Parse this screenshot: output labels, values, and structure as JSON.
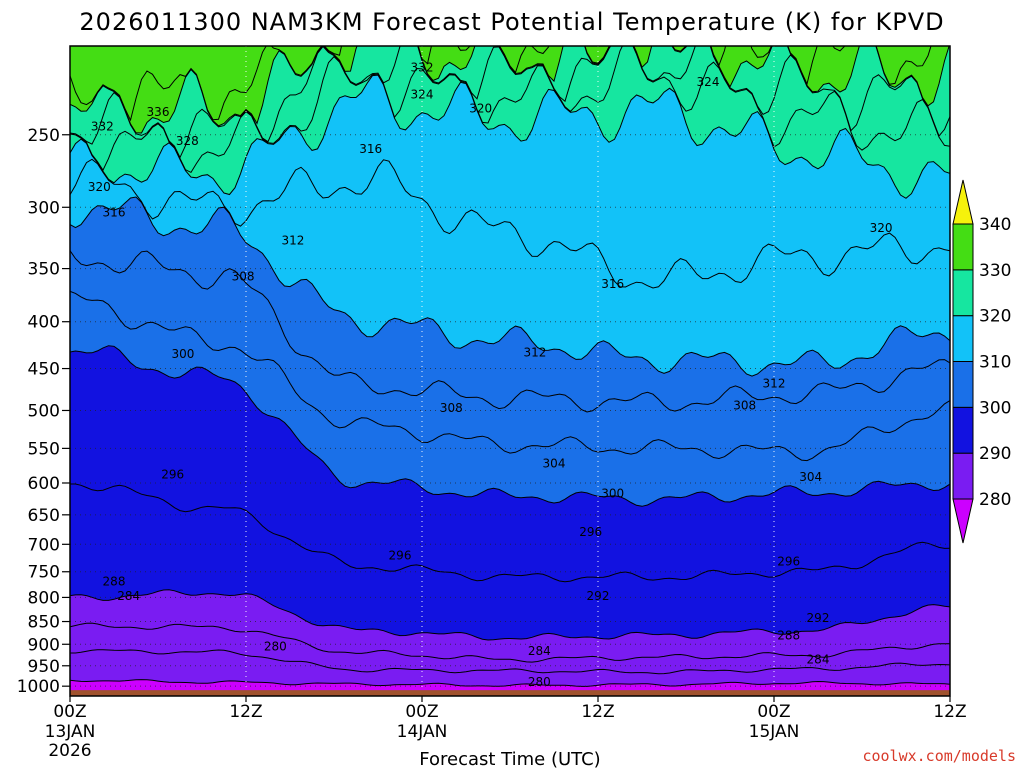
{
  "chart_data": {
    "type": "contour",
    "title": "2026011300 NAM3KM Forecast Potential Temperature (K) for KPVD",
    "xlabel": "Forecast Time (UTC)",
    "ylabel": "",
    "credit": "coolwx.com/models",
    "x_hours": [
      0,
      12,
      24,
      36,
      48,
      60
    ],
    "x_ticks": [
      {
        "hour": 0,
        "label": "00Z",
        "date": "13JAN",
        "year": "2026"
      },
      {
        "hour": 12,
        "label": "12Z",
        "date": "",
        "year": ""
      },
      {
        "hour": 24,
        "label": "00Z",
        "date": "14JAN",
        "year": ""
      },
      {
        "hour": 36,
        "label": "12Z",
        "date": "",
        "year": ""
      },
      {
        "hour": 48,
        "label": "00Z",
        "date": "15JAN",
        "year": ""
      },
      {
        "hour": 60,
        "label": "12Z",
        "date": "",
        "year": ""
      }
    ],
    "y_ticks_hpa": [
      250,
      300,
      350,
      400,
      450,
      500,
      550,
      600,
      650,
      700,
      750,
      800,
      850,
      900,
      950,
      1000
    ],
    "ylim_hpa": [
      1025,
      200
    ],
    "contour_interval_k": 2,
    "surface_hpa": 1010,
    "isentropes": [
      {
        "theta": 280,
        "pressure": [
          985,
          990,
          995,
          998,
          996,
          992,
          995
        ]
      },
      {
        "theta": 284,
        "pressure": [
          915,
          918,
          960,
          962,
          965,
          958,
          945
        ]
      },
      {
        "theta": 288,
        "pressure": [
          860,
          862,
          920,
          935,
          930,
          925,
          900
        ]
      },
      {
        "theta": 292,
        "pressure": [
          800,
          790,
          870,
          885,
          880,
          870,
          820
        ]
      },
      {
        "theta": 296,
        "pressure": [
          600,
          640,
          740,
          760,
          760,
          750,
          700
        ]
      },
      {
        "theta": 300,
        "pressure": [
          430,
          460,
          600,
          620,
          625,
          615,
          600
        ]
      },
      {
        "theta": 304,
        "pressure": [
          380,
          420,
          520,
          545,
          550,
          555,
          500
        ]
      },
      {
        "theta": 308,
        "pressure": [
          340,
          355,
          470,
          485,
          490,
          480,
          450
        ]
      },
      {
        "theta": 312,
        "pressure": [
          300,
          315,
          400,
          420,
          440,
          445,
          410
        ]
      },
      {
        "theta": 316,
        "pressure": [
          280,
          300,
          280,
          320,
          360,
          340,
          330
        ]
      },
      {
        "theta": 320,
        "pressure": [
          270,
          275,
          230,
          240,
          235,
          260,
          280
        ]
      },
      {
        "theta": 324,
        "pressure": [
          255,
          260,
          220,
          230,
          215,
          240,
          250
        ]
      },
      {
        "theta": 328,
        "pressure": [
          245,
          250,
          212,
          218,
          212,
          225,
          230
        ]
      },
      {
        "theta": 332,
        "pressure": [
          240,
          235,
          205,
          212,
          208,
          215,
          215
        ]
      },
      {
        "theta": 336,
        "pressure": [
          230,
          228,
          203,
          208,
          205,
          208,
          208
        ]
      }
    ],
    "contour_labels": [
      {
        "theta": "336",
        "hour": 6.0,
        "p": 236
      },
      {
        "theta": "332",
        "hour": 2.2,
        "p": 245
      },
      {
        "theta": "328",
        "hour": 8.0,
        "p": 254
      },
      {
        "theta": "332",
        "hour": 24.0,
        "p": 211
      },
      {
        "theta": "324",
        "hour": 24.0,
        "p": 226
      },
      {
        "theta": "320",
        "hour": 28.0,
        "p": 234
      },
      {
        "theta": "324",
        "hour": 43.5,
        "p": 219
      },
      {
        "theta": "316",
        "hour": 20.5,
        "p": 259
      },
      {
        "theta": "320",
        "hour": 2.0,
        "p": 285
      },
      {
        "theta": "316",
        "hour": 3.0,
        "p": 304
      },
      {
        "theta": "312",
        "hour": 15.2,
        "p": 326
      },
      {
        "theta": "320",
        "hour": 55.3,
        "p": 316
      },
      {
        "theta": "308",
        "hour": 11.8,
        "p": 357
      },
      {
        "theta": "316",
        "hour": 37.0,
        "p": 364
      },
      {
        "theta": "300",
        "hour": 7.7,
        "p": 434
      },
      {
        "theta": "312",
        "hour": 31.7,
        "p": 432
      },
      {
        "theta": "312",
        "hour": 48.0,
        "p": 467
      },
      {
        "theta": "308",
        "hour": 26.0,
        "p": 497
      },
      {
        "theta": "308",
        "hour": 46.0,
        "p": 494
      },
      {
        "theta": "296",
        "hour": 7.0,
        "p": 587
      },
      {
        "theta": "304",
        "hour": 33.0,
        "p": 571
      },
      {
        "theta": "304",
        "hour": 50.5,
        "p": 591
      },
      {
        "theta": "300",
        "hour": 37.0,
        "p": 616
      },
      {
        "theta": "296",
        "hour": 35.5,
        "p": 679
      },
      {
        "theta": "296",
        "hour": 22.5,
        "p": 720
      },
      {
        "theta": "296",
        "hour": 49.0,
        "p": 731
      },
      {
        "theta": "288",
        "hour": 3.0,
        "p": 769
      },
      {
        "theta": "284",
        "hour": 4.0,
        "p": 797
      },
      {
        "theta": "292",
        "hour": 36.0,
        "p": 797
      },
      {
        "theta": "292",
        "hour": 51.0,
        "p": 843
      },
      {
        "theta": "288",
        "hour": 49.0,
        "p": 880
      },
      {
        "theta": "280",
        "hour": 14.0,
        "p": 905
      },
      {
        "theta": "284",
        "hour": 32.0,
        "p": 915
      },
      {
        "theta": "284",
        "hour": 51.0,
        "p": 935
      },
      {
        "theta": "280",
        "hour": 32.0,
        "p": 990
      }
    ],
    "colorbar": {
      "ticks": [
        "280",
        "290",
        "300",
        "310",
        "320",
        "330",
        "340"
      ],
      "bins": [
        {
          "from": 270,
          "to": 280,
          "color": "#cc00ff"
        },
        {
          "from": 280,
          "to": 290,
          "color": "#7a1cf2"
        },
        {
          "from": 290,
          "to": 300,
          "color": "#1212e0"
        },
        {
          "from": 300,
          "to": 310,
          "color": "#1a70e8"
        },
        {
          "from": 310,
          "to": 320,
          "color": "#12c2f8"
        },
        {
          "from": 320,
          "to": 330,
          "color": "#16e6a0"
        },
        {
          "from": 330,
          "to": 340,
          "color": "#44dd14"
        },
        {
          "from": 340,
          "to": 350,
          "color": "#f6f20c"
        }
      ]
    },
    "ground_color": "#a0522d"
  }
}
